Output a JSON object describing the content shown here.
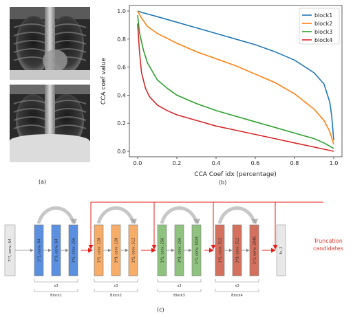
{
  "captions": {
    "a": "(a)",
    "b": "(b)",
    "c": "(c)"
  },
  "chart_data": {
    "type": "line",
    "xlabel": "CCA Coef idx (percentage)",
    "ylabel": "CCA coef value",
    "xlim": [
      0,
      1
    ],
    "ylim": [
      0,
      1
    ],
    "xticks": [
      "0.0",
      "0.2",
      "0.4",
      "0.6",
      "0.8",
      "1.0"
    ],
    "yticks": [
      "0.0",
      "0.2",
      "0.4",
      "0.6",
      "0.8",
      "1.0"
    ],
    "legend_position": "top-right",
    "grid": false,
    "series": [
      {
        "name": "block1",
        "color": "#1f77b4",
        "x": [
          0,
          0.02,
          0.1,
          0.2,
          0.3,
          0.4,
          0.5,
          0.6,
          0.7,
          0.8,
          0.9,
          0.95,
          0.98,
          0.99,
          1.0
        ],
        "y": [
          1.0,
          0.99,
          0.96,
          0.92,
          0.88,
          0.84,
          0.8,
          0.76,
          0.71,
          0.65,
          0.56,
          0.48,
          0.35,
          0.25,
          0.08
        ]
      },
      {
        "name": "block2",
        "color": "#ff7f0e",
        "x": [
          0,
          0.02,
          0.05,
          0.1,
          0.2,
          0.3,
          0.4,
          0.5,
          0.6,
          0.7,
          0.8,
          0.9,
          0.95,
          0.98,
          1.0
        ],
        "y": [
          1.0,
          0.95,
          0.89,
          0.84,
          0.77,
          0.71,
          0.66,
          0.61,
          0.55,
          0.49,
          0.41,
          0.3,
          0.22,
          0.14,
          0.05
        ]
      },
      {
        "name": "block3",
        "color": "#2ca02c",
        "x": [
          0,
          0.01,
          0.03,
          0.05,
          0.1,
          0.15,
          0.2,
          0.3,
          0.4,
          0.5,
          0.6,
          0.7,
          0.8,
          0.9,
          0.95,
          1.0
        ],
        "y": [
          0.97,
          0.84,
          0.72,
          0.63,
          0.51,
          0.45,
          0.4,
          0.34,
          0.29,
          0.25,
          0.21,
          0.17,
          0.13,
          0.09,
          0.06,
          0.02
        ]
      },
      {
        "name": "block4",
        "color": "#d62728",
        "x": [
          0,
          0.01,
          0.02,
          0.04,
          0.06,
          0.1,
          0.15,
          0.2,
          0.3,
          0.4,
          0.5,
          0.6,
          0.7,
          0.8,
          0.9,
          1.0
        ],
        "y": [
          0.91,
          0.7,
          0.56,
          0.45,
          0.39,
          0.33,
          0.29,
          0.26,
          0.22,
          0.18,
          0.15,
          0.12,
          0.09,
          0.06,
          0.03,
          0.0
        ]
      }
    ]
  },
  "diagram": {
    "stem_label": "7*7, conv, 64",
    "fc_label": "fc, 2",
    "truncation_label": [
      "Truncation",
      "candidates"
    ],
    "colors": {
      "stem": "#e8e8e8",
      "block1": "#5b8fdf",
      "block2": "#f6ad6a",
      "block3": "#8ec27e",
      "block4": "#d4705e",
      "arrow_red": "#e3201b"
    },
    "blocks": [
      {
        "name": "Block1",
        "repeat": "x3",
        "layers": [
          "1*1, conv, 64",
          "3*3, conv, 64",
          "1*1, conv, 256"
        ]
      },
      {
        "name": "Block2",
        "repeat": "x3",
        "layers": [
          "1*1, conv, 128",
          "3*3, conv, 128",
          "1*1, conv, 512"
        ]
      },
      {
        "name": "Block3",
        "repeat": "x3",
        "layers": [
          "1*1, conv, 256",
          "3*3, conv, 256",
          "1*1, conv, 1024"
        ]
      },
      {
        "name": "Block4",
        "repeat": "x3",
        "layers": [
          "1*1, conv, 512",
          "3*3, conv, 512",
          "1*1, conv, 2048"
        ]
      }
    ]
  }
}
